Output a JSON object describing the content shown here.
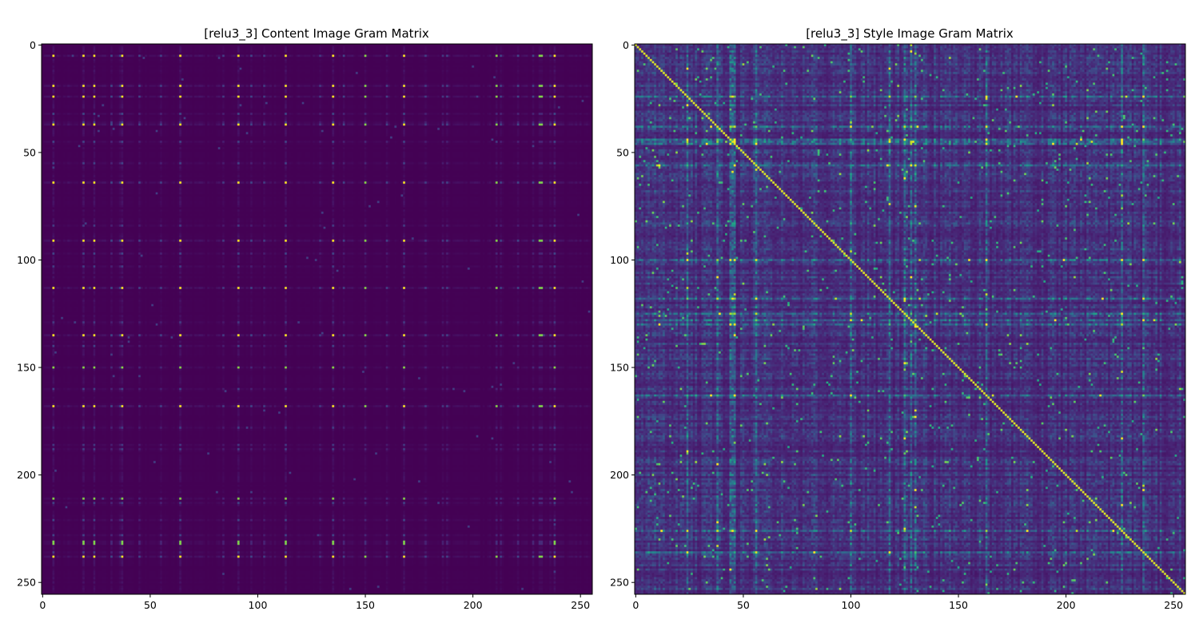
{
  "chart_data": [
    {
      "type": "heatmap",
      "title": "[relu3_3] Content Image Gram Matrix",
      "size": 256,
      "colormap": "viridis",
      "xlim": [
        0,
        256
      ],
      "ylim": [
        256,
        0
      ],
      "xticks": [
        0,
        50,
        100,
        150,
        200,
        250
      ],
      "yticks": [
        0,
        50,
        100,
        150,
        200,
        250
      ],
      "xtick_labels": [
        "0",
        "50",
        "100",
        "150",
        "200",
        "250"
      ],
      "ytick_labels": [
        "0",
        "50",
        "100",
        "150",
        "200",
        "250"
      ],
      "background_value": 0.0,
      "strong_channels": [
        5,
        19,
        24,
        37,
        64,
        91,
        113,
        135,
        168,
        238
      ],
      "notes": "Nearly uniform low values; sparse bright cells where strong channels intersect"
    },
    {
      "type": "heatmap",
      "title": "[relu3_3] Style Image Gram Matrix",
      "size": 256,
      "colormap": "viridis",
      "xlim": [
        0,
        256
      ],
      "ylim": [
        256,
        0
      ],
      "xticks": [
        0,
        50,
        100,
        150,
        200,
        250
      ],
      "yticks": [
        0,
        50,
        100,
        150,
        200,
        250
      ],
      "xtick_labels": [
        "0",
        "50",
        "100",
        "150",
        "200",
        "250"
      ],
      "ytick_labels": [
        "0",
        "50",
        "100",
        "150",
        "200",
        "250"
      ],
      "background_value": 0.12,
      "diagonal_value": 0.95,
      "active_channels": [
        24,
        38,
        44,
        45,
        46,
        56,
        100,
        118,
        125,
        128,
        130,
        163,
        226,
        236
      ],
      "notes": "Bright diagonal; textured background with brighter bands at active channels"
    }
  ]
}
